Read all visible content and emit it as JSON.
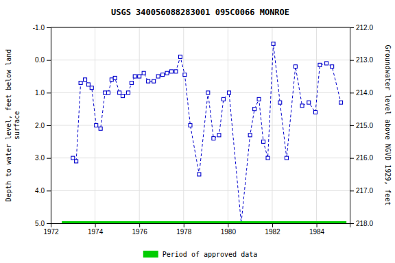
{
  "chart_data": {
    "type": "line",
    "title": "USGS 340056088283001 095C0066  MONROE",
    "ylabel": "Depth to water level, feet below land\nsurface",
    "y2label": "Groundwater level above NGVD 1929, feet",
    "xlim": [
      1972,
      1985.5
    ],
    "xticks": [
      1972,
      1974,
      1976,
      1978,
      1980,
      1982,
      1984
    ],
    "ylim": [
      5.0,
      -1.0
    ],
    "yticks": [
      {
        "value": -1.0,
        "label": "-1.0"
      },
      {
        "value": 0.0,
        "label": "0.0"
      },
      {
        "value": 1.0,
        "label": "1.0"
      },
      {
        "value": 2.0,
        "label": "2.0"
      },
      {
        "value": 3.0,
        "label": "3.0"
      },
      {
        "value": 4.0,
        "label": "4.0"
      },
      {
        "value": 5.0,
        "label": "5.0"
      }
    ],
    "y2lim": [
      218.0,
      212.0
    ],
    "y2ticks": [
      {
        "value": 218.0,
        "label": "218.0"
      },
      {
        "value": 217.0,
        "label": "217.0"
      },
      {
        "value": 216.0,
        "label": "216.0"
      },
      {
        "value": 215.0,
        "label": "215.0"
      },
      {
        "value": 214.0,
        "label": "214.0"
      },
      {
        "value": 213.0,
        "label": "213.0"
      },
      {
        "value": 212.0,
        "label": "212.0"
      }
    ],
    "grid": true,
    "legend": "bottom",
    "series": [
      {
        "type": "line",
        "color": "#0000cc",
        "line_style": "dashed",
        "marker": "square",
        "x": [
          1973.0,
          1973.15,
          1973.35,
          1973.55,
          1973.7,
          1973.85,
          1974.05,
          1974.25,
          1974.45,
          1974.6,
          1974.75,
          1974.9,
          1975.1,
          1975.25,
          1975.5,
          1975.65,
          1975.8,
          1976.0,
          1976.2,
          1976.4,
          1976.65,
          1976.85,
          1977.05,
          1977.25,
          1977.45,
          1977.65,
          1977.85,
          1978.05,
          1978.3,
          1978.7,
          1979.1,
          1979.35,
          1979.6,
          1979.8,
          1980.05,
          1980.6,
          1981.0,
          1981.2,
          1981.4,
          1981.6,
          1981.8,
          1982.05,
          1982.35,
          1982.65,
          1983.05,
          1983.35,
          1983.65,
          1983.95,
          1984.15,
          1984.45,
          1984.7,
          1985.1
        ],
        "values": [
          3.0,
          3.1,
          0.7,
          0.6,
          0.75,
          0.85,
          2.0,
          2.1,
          1.0,
          1.0,
          0.6,
          0.55,
          1.0,
          1.1,
          1.0,
          0.7,
          0.5,
          0.5,
          0.4,
          0.65,
          0.65,
          0.5,
          0.45,
          0.4,
          0.35,
          0.35,
          -0.1,
          0.45,
          2.0,
          3.5,
          1.0,
          2.4,
          2.3,
          1.2,
          1.0,
          5.0,
          2.3,
          1.5,
          1.2,
          2.5,
          3.0,
          -0.5,
          1.3,
          3.0,
          0.2,
          1.4,
          1.3,
          1.6,
          0.15,
          0.1,
          0.2,
          1.3
        ]
      },
      {
        "type": "span",
        "name": "Period of approved data",
        "color": "#00cc00",
        "x": [
          1972.5,
          1985.35
        ],
        "values": [
          5.0,
          5.0
        ]
      }
    ]
  }
}
